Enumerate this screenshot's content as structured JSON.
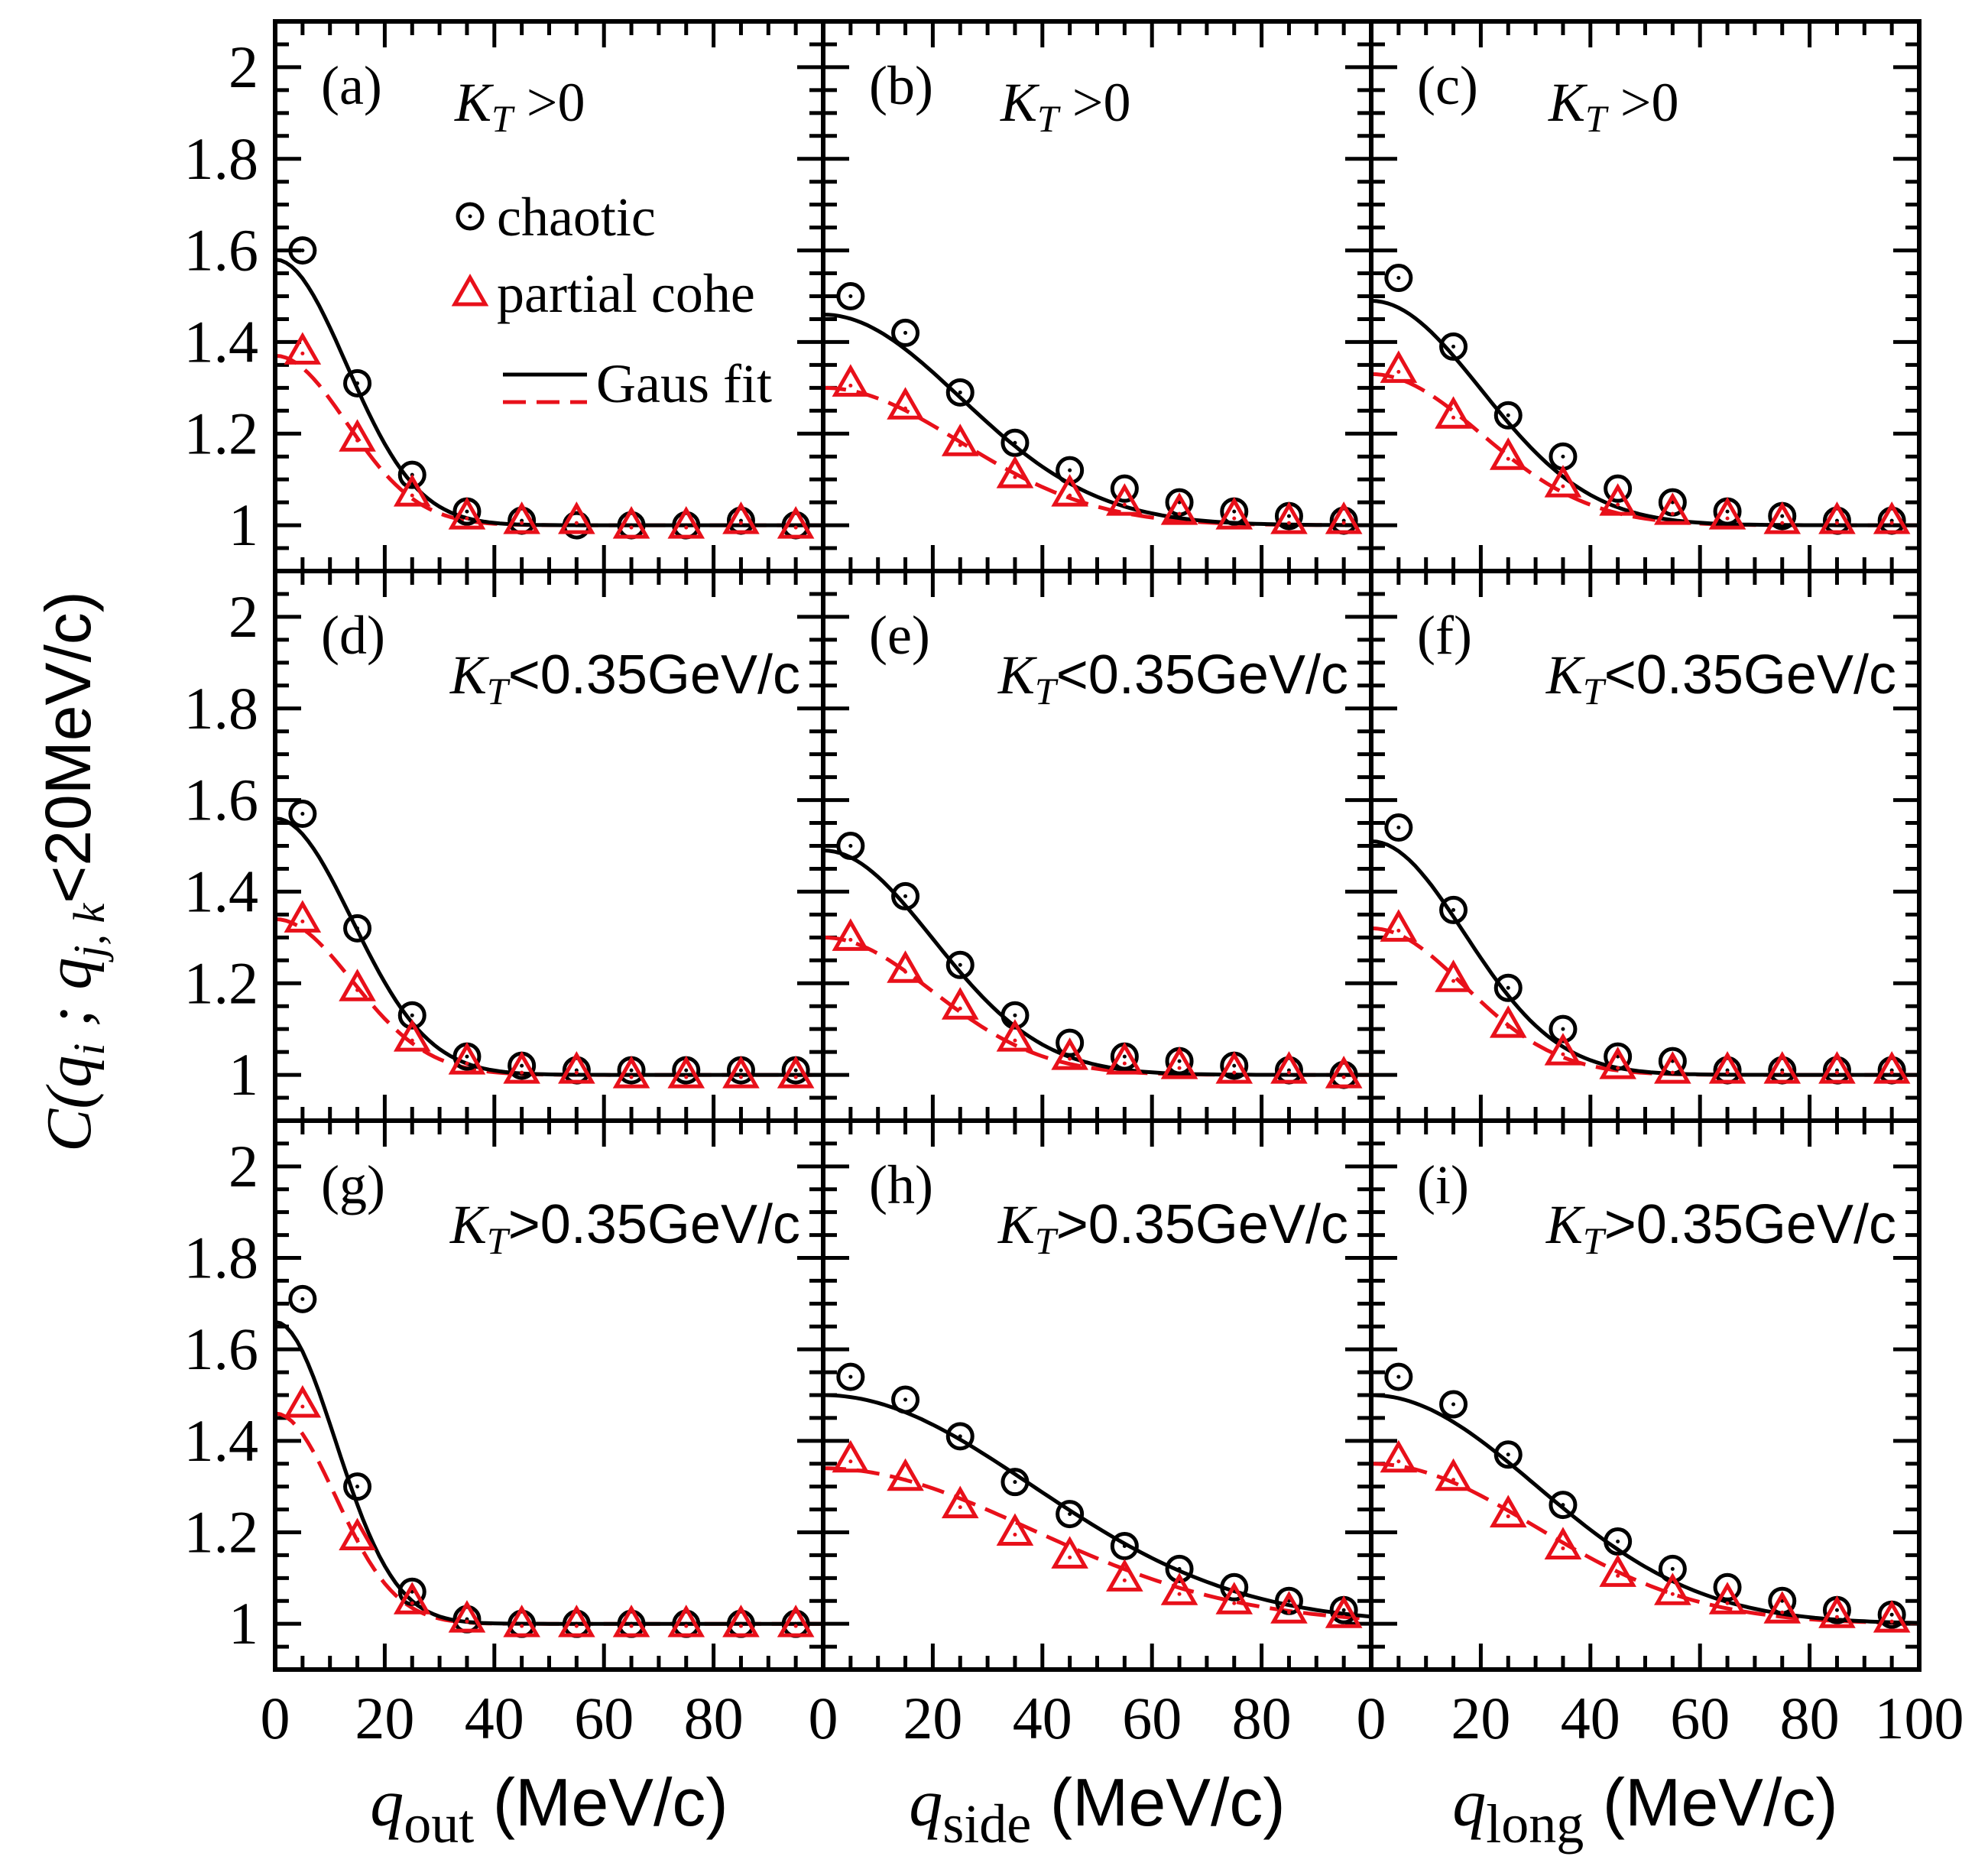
{
  "chart_data": {
    "type": "scatter",
    "layout": "3x3 grid of panels sharing axes",
    "ylabel": "C(q_i ; q_j,k <20MeV/c)",
    "ylabel_parts": {
      "main": "C(q",
      "sub_i": "i",
      "sep": " ; q",
      "sub_jk": "j, k",
      "tail": "<20MeV/c)"
    },
    "xlim": [
      0,
      100
    ],
    "ylim": [
      0.9,
      2.1
    ],
    "x_ticks": [
      "0",
      "20",
      "40",
      "60",
      "80"
    ],
    "x_ticks_last": [
      "0",
      "20",
      "40",
      "60",
      "80",
      "100"
    ],
    "y_ticks": [
      "1",
      "1.2",
      "1.4",
      "1.6",
      "1.8",
      "2"
    ],
    "y_tick_values": [
      1,
      1.2,
      1.4,
      1.6,
      1.8,
      2
    ],
    "x_tick_values_last": [
      0,
      20,
      40,
      60,
      80,
      100
    ],
    "xlabels": [
      {
        "var": "q",
        "sub": "out",
        "unit": "(MeV/c)"
      },
      {
        "var": "q",
        "sub": "side",
        "unit": "(MeV/c)"
      },
      {
        "var": "q",
        "sub": "long",
        "unit": "(MeV/c)"
      }
    ],
    "legend": {
      "chaotic": "chaotic",
      "partial": "partial cohe",
      "fit": "Gaus fit"
    },
    "colors": {
      "chaotic": "#000000",
      "partial": "#e8101a"
    },
    "x_points": [
      5,
      15,
      25,
      35,
      45,
      55,
      65,
      75,
      85,
      95
    ],
    "panels": [
      {
        "label": "(a)",
        "kt": "K",
        "kt_sub": "T",
        "kt_cut": " >0",
        "kt_style": "serif",
        "chaotic": [
          1.6,
          1.31,
          1.11,
          1.03,
          1.01,
          1.0,
          1.0,
          1.0,
          1.01,
          1.0
        ],
        "partial": [
          1.38,
          1.19,
          1.07,
          1.02,
          1.01,
          1.01,
          1.0,
          1.0,
          1.01,
          1.0
        ],
        "fit_chaotic": {
          "base": 1.0,
          "amp": 0.58,
          "sigma": 13
        },
        "fit_partial": {
          "base": 1.0,
          "amp": 0.37,
          "sigma": 13
        }
      },
      {
        "label": "(b)",
        "kt": "K",
        "kt_sub": "T",
        "kt_cut": " >0",
        "kt_style": "serif",
        "chaotic": [
          1.5,
          1.42,
          1.29,
          1.18,
          1.12,
          1.08,
          1.05,
          1.03,
          1.02,
          1.01
        ],
        "partial": [
          1.31,
          1.26,
          1.18,
          1.11,
          1.07,
          1.05,
          1.03,
          1.02,
          1.01,
          1.01
        ],
        "fit_chaotic": {
          "base": 1.0,
          "amp": 0.46,
          "sigma": 25
        },
        "fit_partial": {
          "base": 1.0,
          "amp": 0.3,
          "sigma": 25
        }
      },
      {
        "label": "(c)",
        "kt": "K",
        "kt_sub": "T",
        "kt_cut": " >0",
        "kt_style": "serif",
        "chaotic": [
          1.54,
          1.39,
          1.24,
          1.15,
          1.08,
          1.05,
          1.03,
          1.02,
          1.01,
          1.01
        ],
        "partial": [
          1.34,
          1.24,
          1.15,
          1.09,
          1.05,
          1.03,
          1.02,
          1.01,
          1.01,
          1.01
        ],
        "fit_chaotic": {
          "base": 1.0,
          "amp": 0.49,
          "sigma": 20
        },
        "fit_partial": {
          "base": 1.0,
          "amp": 0.33,
          "sigma": 20
        }
      },
      {
        "label": "(d)",
        "kt": "K",
        "kt_sub": "T",
        "kt_cut": "<0.35GeV/c",
        "kt_style": "sans",
        "chaotic": [
          1.57,
          1.32,
          1.13,
          1.04,
          1.02,
          1.01,
          1.01,
          1.01,
          1.01,
          1.01
        ],
        "partial": [
          1.34,
          1.19,
          1.08,
          1.03,
          1.01,
          1.01,
          1.0,
          1.0,
          1.0,
          1.0
        ],
        "fit_chaotic": {
          "base": 1.0,
          "amp": 0.56,
          "sigma": 14
        },
        "fit_partial": {
          "base": 1.0,
          "amp": 0.34,
          "sigma": 14
        }
      },
      {
        "label": "(e)",
        "kt": "K",
        "kt_sub": "T",
        "kt_cut": "<0.35GeV/c",
        "kt_style": "sans",
        "chaotic": [
          1.5,
          1.39,
          1.24,
          1.13,
          1.07,
          1.04,
          1.03,
          1.02,
          1.01,
          1.0
        ],
        "partial": [
          1.3,
          1.23,
          1.15,
          1.08,
          1.04,
          1.03,
          1.02,
          1.01,
          1.01,
          1.0
        ],
        "fit_chaotic": {
          "base": 1.0,
          "amp": 0.49,
          "sigma": 20
        },
        "fit_partial": {
          "base": 1.0,
          "amp": 0.3,
          "sigma": 20
        }
      },
      {
        "label": "(f)",
        "kt": "K",
        "kt_sub": "T",
        "kt_cut": "<0.35GeV/c",
        "kt_style": "sans",
        "chaotic": [
          1.54,
          1.36,
          1.19,
          1.1,
          1.04,
          1.03,
          1.01,
          1.01,
          1.01,
          1.01
        ],
        "partial": [
          1.32,
          1.21,
          1.11,
          1.05,
          1.02,
          1.01,
          1.01,
          1.01,
          1.01,
          1.01
        ],
        "fit_chaotic": {
          "base": 1.0,
          "amp": 0.51,
          "sigma": 17
        },
        "fit_partial": {
          "base": 1.0,
          "amp": 0.32,
          "sigma": 17
        }
      },
      {
        "label": "(g)",
        "kt": "K",
        "kt_sub": "T",
        "kt_cut": ">0.35GeV/c",
        "kt_style": "sans",
        "chaotic": [
          1.71,
          1.3,
          1.07,
          1.01,
          1.0,
          1.0,
          1.0,
          1.0,
          1.0,
          1.0
        ],
        "partial": [
          1.48,
          1.19,
          1.05,
          1.01,
          1.0,
          1.0,
          1.0,
          1.0,
          1.0,
          1.0
        ],
        "fit_chaotic": {
          "base": 1.0,
          "amp": 0.66,
          "sigma": 11
        },
        "fit_partial": {
          "base": 1.0,
          "amp": 0.46,
          "sigma": 11
        }
      },
      {
        "label": "(h)",
        "kt": "K",
        "kt_sub": "T",
        "kt_cut": ">0.35GeV/c",
        "kt_style": "sans",
        "chaotic": [
          1.54,
          1.49,
          1.41,
          1.31,
          1.24,
          1.17,
          1.12,
          1.08,
          1.05,
          1.03
        ],
        "partial": [
          1.36,
          1.32,
          1.26,
          1.2,
          1.15,
          1.1,
          1.07,
          1.05,
          1.03,
          1.02
        ],
        "fit_chaotic": {
          "base": 1.0,
          "amp": 0.5,
          "sigma": 38
        },
        "fit_partial": {
          "base": 1.0,
          "amp": 0.34,
          "sigma": 38
        }
      },
      {
        "label": "(i)",
        "kt": "K",
        "kt_sub": "T",
        "kt_cut": ">0.35GeV/c",
        "kt_style": "sans",
        "chaotic": [
          1.54,
          1.48,
          1.37,
          1.26,
          1.18,
          1.12,
          1.08,
          1.05,
          1.03,
          1.02
        ],
        "partial": [
          1.36,
          1.32,
          1.24,
          1.17,
          1.11,
          1.07,
          1.05,
          1.03,
          1.02,
          1.01
        ],
        "fit_chaotic": {
          "base": 1.0,
          "amp": 0.5,
          "sigma": 30
        },
        "fit_partial": {
          "base": 1.0,
          "amp": 0.35,
          "sigma": 30
        }
      }
    ]
  }
}
